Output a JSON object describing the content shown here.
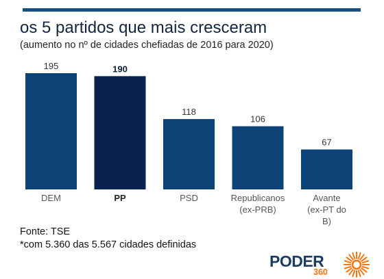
{
  "header": {
    "title": "os 5 partidos que mais cresceram",
    "subtitle": "(aumento no nº de cidades chefiadas de 2016 para 2020)"
  },
  "chart_data": {
    "type": "bar",
    "title": "os 5 partidos que mais cresceram",
    "subtitle": "(aumento no nº de cidades chefiadas de 2016 para 2020)",
    "categories": [
      "DEM",
      "PP",
      "PSD",
      "Republicanos (ex-PRB)",
      "Avante (ex-PT do B)"
    ],
    "category_lines": [
      [
        "DEM"
      ],
      [
        "PP"
      ],
      [
        "PSD"
      ],
      [
        "Republicanos",
        "(ex-PRB)"
      ],
      [
        "Avante",
        "(ex-PT do",
        "B)"
      ]
    ],
    "values": [
      195,
      190,
      118,
      106,
      67
    ],
    "highlight": "PP",
    "xlabel": "",
    "ylabel": "",
    "ylim": [
      0,
      195
    ],
    "grid": false,
    "colors": {
      "bar": "#0e4377",
      "highlight": "#0a2250"
    }
  },
  "footer": {
    "source": "Fonte: TSE",
    "note": "*com 5.360 das 5.567 cidades definidas"
  },
  "logo": {
    "name": "PODER",
    "number": "360",
    "colors": {
      "text": "#1c3c66",
      "accent": "#f27413"
    }
  }
}
